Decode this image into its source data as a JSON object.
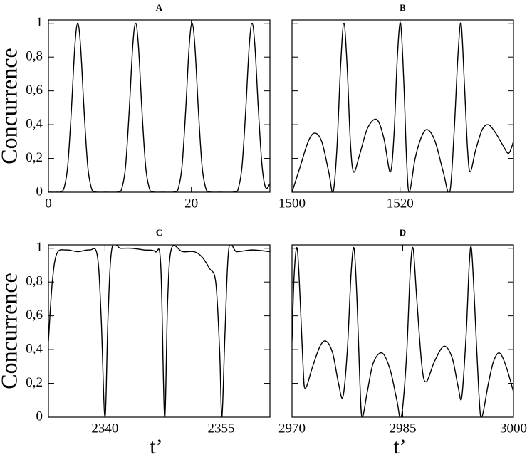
{
  "chart_data": [
    {
      "type": "line",
      "title": "A",
      "ylabel": "Concurrence",
      "color": "#000000",
      "x": [
        0,
        1.2,
        1.7,
        2.2,
        2.7,
        3.2,
        3.7,
        4.1,
        4.5,
        5.0,
        5.5,
        6.0,
        6.5,
        8,
        9.8,
        10.3,
        10.8,
        11.3,
        11.8,
        12.2,
        12.6,
        13.1,
        13.6,
        14.1,
        14.6,
        16,
        17.7,
        18.2,
        18.7,
        19.2,
        19.7,
        20.1,
        20.5,
        21.0,
        21.5,
        22.0,
        22.5,
        24,
        26.1,
        26.6,
        27.1,
        27.6,
        28.1,
        28.5,
        28.9,
        29.4,
        29.9,
        30.4,
        31
      ],
      "values": [
        0,
        0,
        0.002,
        0.027,
        0.155,
        0.476,
        0.865,
        1,
        0.865,
        0.476,
        0.155,
        0.027,
        0.002,
        0,
        0.002,
        0.027,
        0.155,
        0.476,
        0.865,
        1,
        0.865,
        0.476,
        0.155,
        0.027,
        0.002,
        0,
        0.002,
        0.027,
        0.155,
        0.476,
        0.865,
        1,
        0.865,
        0.476,
        0.155,
        0.027,
        0.002,
        0,
        0.002,
        0.027,
        0.155,
        0.476,
        0.865,
        1,
        0.865,
        0.476,
        0.155,
        0.027,
        0.05
      ],
      "xlim": [
        0,
        31
      ],
      "xticks": [
        0,
        20
      ],
      "ylim": [
        0,
        1.02
      ],
      "yticks": [
        0,
        {
          "value": 0.2,
          "label": "0,2"
        },
        {
          "value": 0.4,
          "label": "0,4"
        },
        {
          "value": 0.6,
          "label": "0,6"
        },
        {
          "value": 0.8,
          "label": "0,8"
        },
        1
      ]
    },
    {
      "type": "line",
      "title": "B",
      "color": "#000000",
      "x": [
        1500,
        1501.5,
        1503,
        1504.2,
        1505.5,
        1506.8,
        1507.6,
        1508.3,
        1509,
        1509.6,
        1510.2,
        1510.8,
        1511.4,
        1512.5,
        1514,
        1515.7,
        1517,
        1518.2,
        1518.9,
        1519.5,
        1520.1,
        1520.7,
        1521.2,
        1521.7,
        1522.8,
        1524,
        1525.1,
        1526.5,
        1528,
        1529.2,
        1530,
        1530.7,
        1531.3,
        1531.9,
        1532.5,
        1533,
        1534,
        1535.2,
        1536.3,
        1537.5,
        1539,
        1540.1,
        1541
      ],
      "values": [
        0,
        0.15,
        0.3,
        0.35,
        0.3,
        0.12,
        0,
        0.25,
        0.75,
        1,
        0.75,
        0.3,
        0.12,
        0.22,
        0.38,
        0.43,
        0.32,
        0.12,
        0.35,
        0.8,
        1,
        0.65,
        0.2,
        0,
        0.2,
        0.33,
        0.37,
        0.3,
        0.12,
        0,
        0.35,
        0.8,
        1,
        0.65,
        0.25,
        0.12,
        0.25,
        0.37,
        0.4,
        0.36,
        0.28,
        0.23,
        0.3
      ],
      "xlim": [
        1500,
        1541
      ],
      "xticks": [
        1500,
        1520
      ],
      "ylim": [
        0,
        1.02
      ]
    },
    {
      "type": "line",
      "title": "C",
      "ylabel": "Concurrence",
      "xlabel": "t’",
      "color": "#000000",
      "x": [
        2332.7,
        2333.2,
        2333.8,
        2335,
        2336.5,
        2338,
        2339,
        2339.5,
        2340,
        2340.4,
        2340.9,
        2342,
        2343.5,
        2345,
        2346.5,
        2347.2,
        2347.7,
        2348.1,
        2348.6,
        2350,
        2351.5,
        2352.5,
        2353.5,
        2354.3,
        2354.8,
        2355.1,
        2355.5,
        2356,
        2357,
        2359,
        2361.3
      ],
      "values": [
        0.45,
        0.8,
        0.97,
        0.99,
        0.98,
        0.99,
        0.96,
        0.6,
        0,
        0.6,
        1,
        1,
        1,
        0.99,
        0.98,
        0.9,
        0,
        0.7,
        1,
        0.98,
        0.98,
        0.95,
        0.88,
        0.8,
        0.4,
        0,
        0.5,
        1,
        0.98,
        0.99,
        0.98
      ],
      "xlim": [
        2332.7,
        2361.3
      ],
      "xticks": [
        2340,
        2355
      ],
      "ylim": [
        0,
        1.02
      ],
      "yticks": [
        0,
        {
          "value": 0.2,
          "label": "0,2"
        },
        {
          "value": 0.4,
          "label": "0,4"
        },
        {
          "value": 0.6,
          "label": "0,6"
        },
        {
          "value": 0.8,
          "label": "0,8"
        },
        1
      ]
    },
    {
      "type": "line",
      "title": "D",
      "xlabel": "t’",
      "color": "#000000",
      "x": [
        2970,
        2970.3,
        2970.7,
        2971.1,
        2971.5,
        2971.8,
        2972.8,
        2973.8,
        2974.6,
        2975.5,
        2976.3,
        2976.9,
        2977.5,
        2978,
        2978.4,
        2978.8,
        2979.2,
        2979.5,
        2980.2,
        2981,
        2982.2,
        2983.3,
        2984.2,
        2984.8,
        2985.5,
        2986,
        2986.4,
        2986.9,
        2987.6,
        2988.2,
        2989.3,
        2990.6,
        2991.7,
        2992.5,
        2993,
        2993.6,
        2994,
        2994.3,
        2994.7,
        2995.3,
        2995.7,
        2996.6,
        2997.3,
        2998.1,
        2999,
        3000
      ],
      "values": [
        0.45,
        0.85,
        1,
        0.7,
        0.3,
        0.17,
        0.3,
        0.42,
        0.45,
        0.38,
        0.2,
        0.12,
        0.4,
        0.85,
        1,
        0.7,
        0.2,
        0,
        0.15,
        0.32,
        0.38,
        0.28,
        0.1,
        0,
        0.35,
        0.85,
        1,
        0.7,
        0.3,
        0.21,
        0.33,
        0.42,
        0.35,
        0.18,
        0.12,
        0.5,
        0.9,
        1,
        0.7,
        0.15,
        0,
        0.2,
        0.33,
        0.38,
        0.3,
        0.15
      ],
      "xlim": [
        2970,
        3000
      ],
      "xticks": [
        2970,
        2985,
        3000
      ],
      "ylim": [
        0,
        1.02
      ]
    }
  ]
}
